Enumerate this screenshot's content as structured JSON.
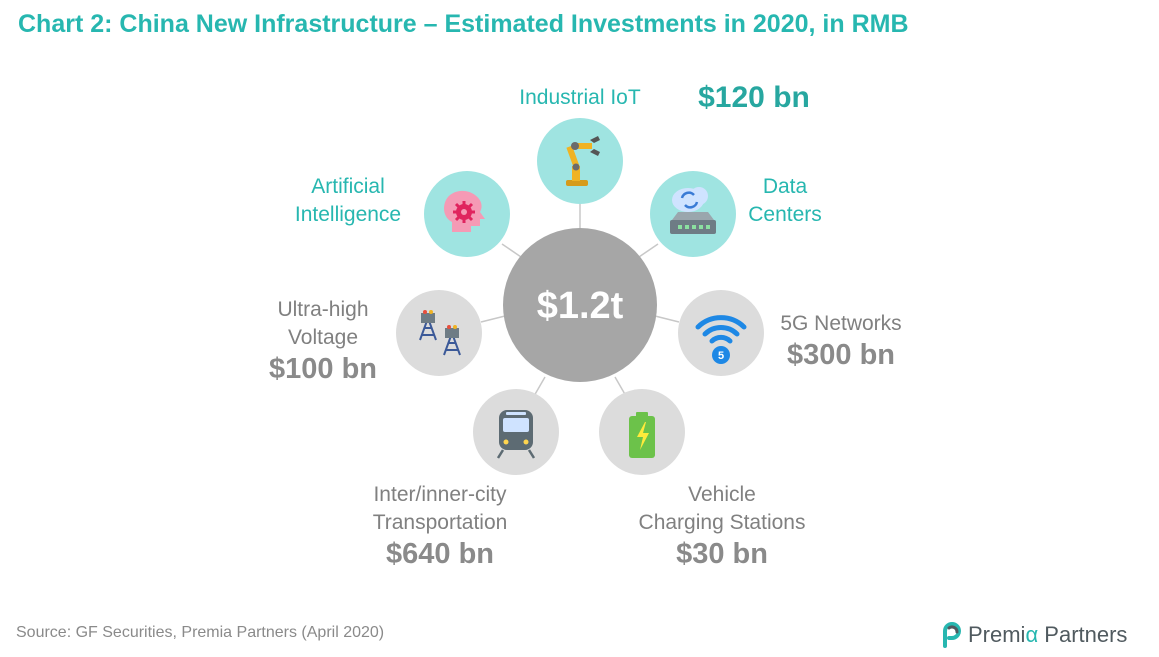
{
  "title": "Chart 2: China New Infrastructure – Estimated Investments in 2020, in RMB",
  "center": {
    "value": "$1.2t"
  },
  "nodes": [
    {
      "id": "industrial-iot",
      "label": [
        "Industrial IoT"
      ],
      "value": "$120 bn",
      "icon": "robot-arm-icon",
      "highlight": true
    },
    {
      "id": "artificial-intelligence",
      "label": [
        "Artificial",
        "Intelligence"
      ],
      "value": "",
      "icon": "brain-gear-icon",
      "highlight": true
    },
    {
      "id": "data-centers",
      "label": [
        "Data",
        "Centers"
      ],
      "value": "",
      "icon": "server-cloud-icon",
      "highlight": true
    },
    {
      "id": "ultra-high-voltage",
      "label": [
        "Ultra-high",
        "Voltage"
      ],
      "value": "$100 bn",
      "icon": "power-tower-icon",
      "highlight": false
    },
    {
      "id": "5g-networks",
      "label": [
        "5G Networks"
      ],
      "value": "$300 bn",
      "icon": "wifi-5g-icon",
      "highlight": false
    },
    {
      "id": "transportation",
      "label": [
        "Inter/inner-city",
        "Transportation"
      ],
      "value": "$640 bn",
      "icon": "train-icon",
      "highlight": false
    },
    {
      "id": "charging-stations",
      "label": [
        "Vehicle",
        "Charging Stations"
      ],
      "value": "$30 bn",
      "icon": "battery-charging-icon",
      "highlight": false
    }
  ],
  "colors": {
    "title": "#27b7b0",
    "highlight_circle": "#9fe4e1",
    "neutral_circle": "#dcdcdc",
    "center_circle": "#a6a6a6"
  },
  "source": "Source: GF Securities, Premia Partners (April 2020)",
  "brand": {
    "name_part1": "Premi",
    "name_alpha": "α",
    "name_part2": " Partners",
    "icon": "premia-logo-icon"
  }
}
